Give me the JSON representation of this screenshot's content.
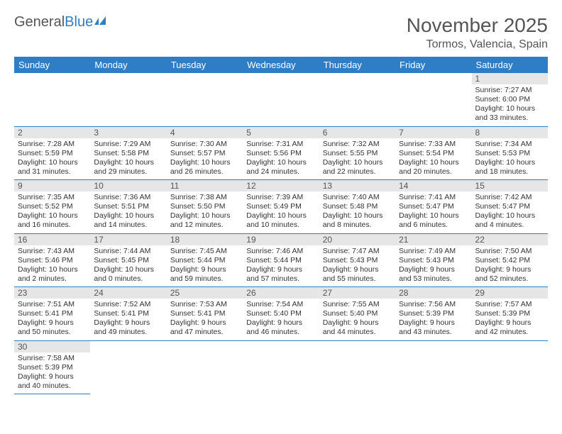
{
  "logo": {
    "part1": "General",
    "part2": "Blue"
  },
  "title": "November 2025",
  "location": "Tormos, Valencia, Spain",
  "colors": {
    "header_bg": "#2f7dc4",
    "header_fg": "#ffffff",
    "daynum_bg": "#e6e6e6",
    "rule": "#2f7dc4"
  },
  "weekdays": [
    "Sunday",
    "Monday",
    "Tuesday",
    "Wednesday",
    "Thursday",
    "Friday",
    "Saturday"
  ],
  "first_weekday_index": 6,
  "days": [
    {
      "n": 1,
      "sr": "7:27 AM",
      "ss": "6:00 PM",
      "dl": "10 hours and 33 minutes."
    },
    {
      "n": 2,
      "sr": "7:28 AM",
      "ss": "5:59 PM",
      "dl": "10 hours and 31 minutes."
    },
    {
      "n": 3,
      "sr": "7:29 AM",
      "ss": "5:58 PM",
      "dl": "10 hours and 29 minutes."
    },
    {
      "n": 4,
      "sr": "7:30 AM",
      "ss": "5:57 PM",
      "dl": "10 hours and 26 minutes."
    },
    {
      "n": 5,
      "sr": "7:31 AM",
      "ss": "5:56 PM",
      "dl": "10 hours and 24 minutes."
    },
    {
      "n": 6,
      "sr": "7:32 AM",
      "ss": "5:55 PM",
      "dl": "10 hours and 22 minutes."
    },
    {
      "n": 7,
      "sr": "7:33 AM",
      "ss": "5:54 PM",
      "dl": "10 hours and 20 minutes."
    },
    {
      "n": 8,
      "sr": "7:34 AM",
      "ss": "5:53 PM",
      "dl": "10 hours and 18 minutes."
    },
    {
      "n": 9,
      "sr": "7:35 AM",
      "ss": "5:52 PM",
      "dl": "10 hours and 16 minutes."
    },
    {
      "n": 10,
      "sr": "7:36 AM",
      "ss": "5:51 PM",
      "dl": "10 hours and 14 minutes."
    },
    {
      "n": 11,
      "sr": "7:38 AM",
      "ss": "5:50 PM",
      "dl": "10 hours and 12 minutes."
    },
    {
      "n": 12,
      "sr": "7:39 AM",
      "ss": "5:49 PM",
      "dl": "10 hours and 10 minutes."
    },
    {
      "n": 13,
      "sr": "7:40 AM",
      "ss": "5:48 PM",
      "dl": "10 hours and 8 minutes."
    },
    {
      "n": 14,
      "sr": "7:41 AM",
      "ss": "5:47 PM",
      "dl": "10 hours and 6 minutes."
    },
    {
      "n": 15,
      "sr": "7:42 AM",
      "ss": "5:47 PM",
      "dl": "10 hours and 4 minutes."
    },
    {
      "n": 16,
      "sr": "7:43 AM",
      "ss": "5:46 PM",
      "dl": "10 hours and 2 minutes."
    },
    {
      "n": 17,
      "sr": "7:44 AM",
      "ss": "5:45 PM",
      "dl": "10 hours and 0 minutes."
    },
    {
      "n": 18,
      "sr": "7:45 AM",
      "ss": "5:44 PM",
      "dl": "9 hours and 59 minutes."
    },
    {
      "n": 19,
      "sr": "7:46 AM",
      "ss": "5:44 PM",
      "dl": "9 hours and 57 minutes."
    },
    {
      "n": 20,
      "sr": "7:47 AM",
      "ss": "5:43 PM",
      "dl": "9 hours and 55 minutes."
    },
    {
      "n": 21,
      "sr": "7:49 AM",
      "ss": "5:43 PM",
      "dl": "9 hours and 53 minutes."
    },
    {
      "n": 22,
      "sr": "7:50 AM",
      "ss": "5:42 PM",
      "dl": "9 hours and 52 minutes."
    },
    {
      "n": 23,
      "sr": "7:51 AM",
      "ss": "5:41 PM",
      "dl": "9 hours and 50 minutes."
    },
    {
      "n": 24,
      "sr": "7:52 AM",
      "ss": "5:41 PM",
      "dl": "9 hours and 49 minutes."
    },
    {
      "n": 25,
      "sr": "7:53 AM",
      "ss": "5:41 PM",
      "dl": "9 hours and 47 minutes."
    },
    {
      "n": 26,
      "sr": "7:54 AM",
      "ss": "5:40 PM",
      "dl": "9 hours and 46 minutes."
    },
    {
      "n": 27,
      "sr": "7:55 AM",
      "ss": "5:40 PM",
      "dl": "9 hours and 44 minutes."
    },
    {
      "n": 28,
      "sr": "7:56 AM",
      "ss": "5:39 PM",
      "dl": "9 hours and 43 minutes."
    },
    {
      "n": 29,
      "sr": "7:57 AM",
      "ss": "5:39 PM",
      "dl": "9 hours and 42 minutes."
    },
    {
      "n": 30,
      "sr": "7:58 AM",
      "ss": "5:39 PM",
      "dl": "9 hours and 40 minutes."
    }
  ],
  "labels": {
    "sunrise": "Sunrise: ",
    "sunset": "Sunset: ",
    "daylight": "Daylight: "
  }
}
